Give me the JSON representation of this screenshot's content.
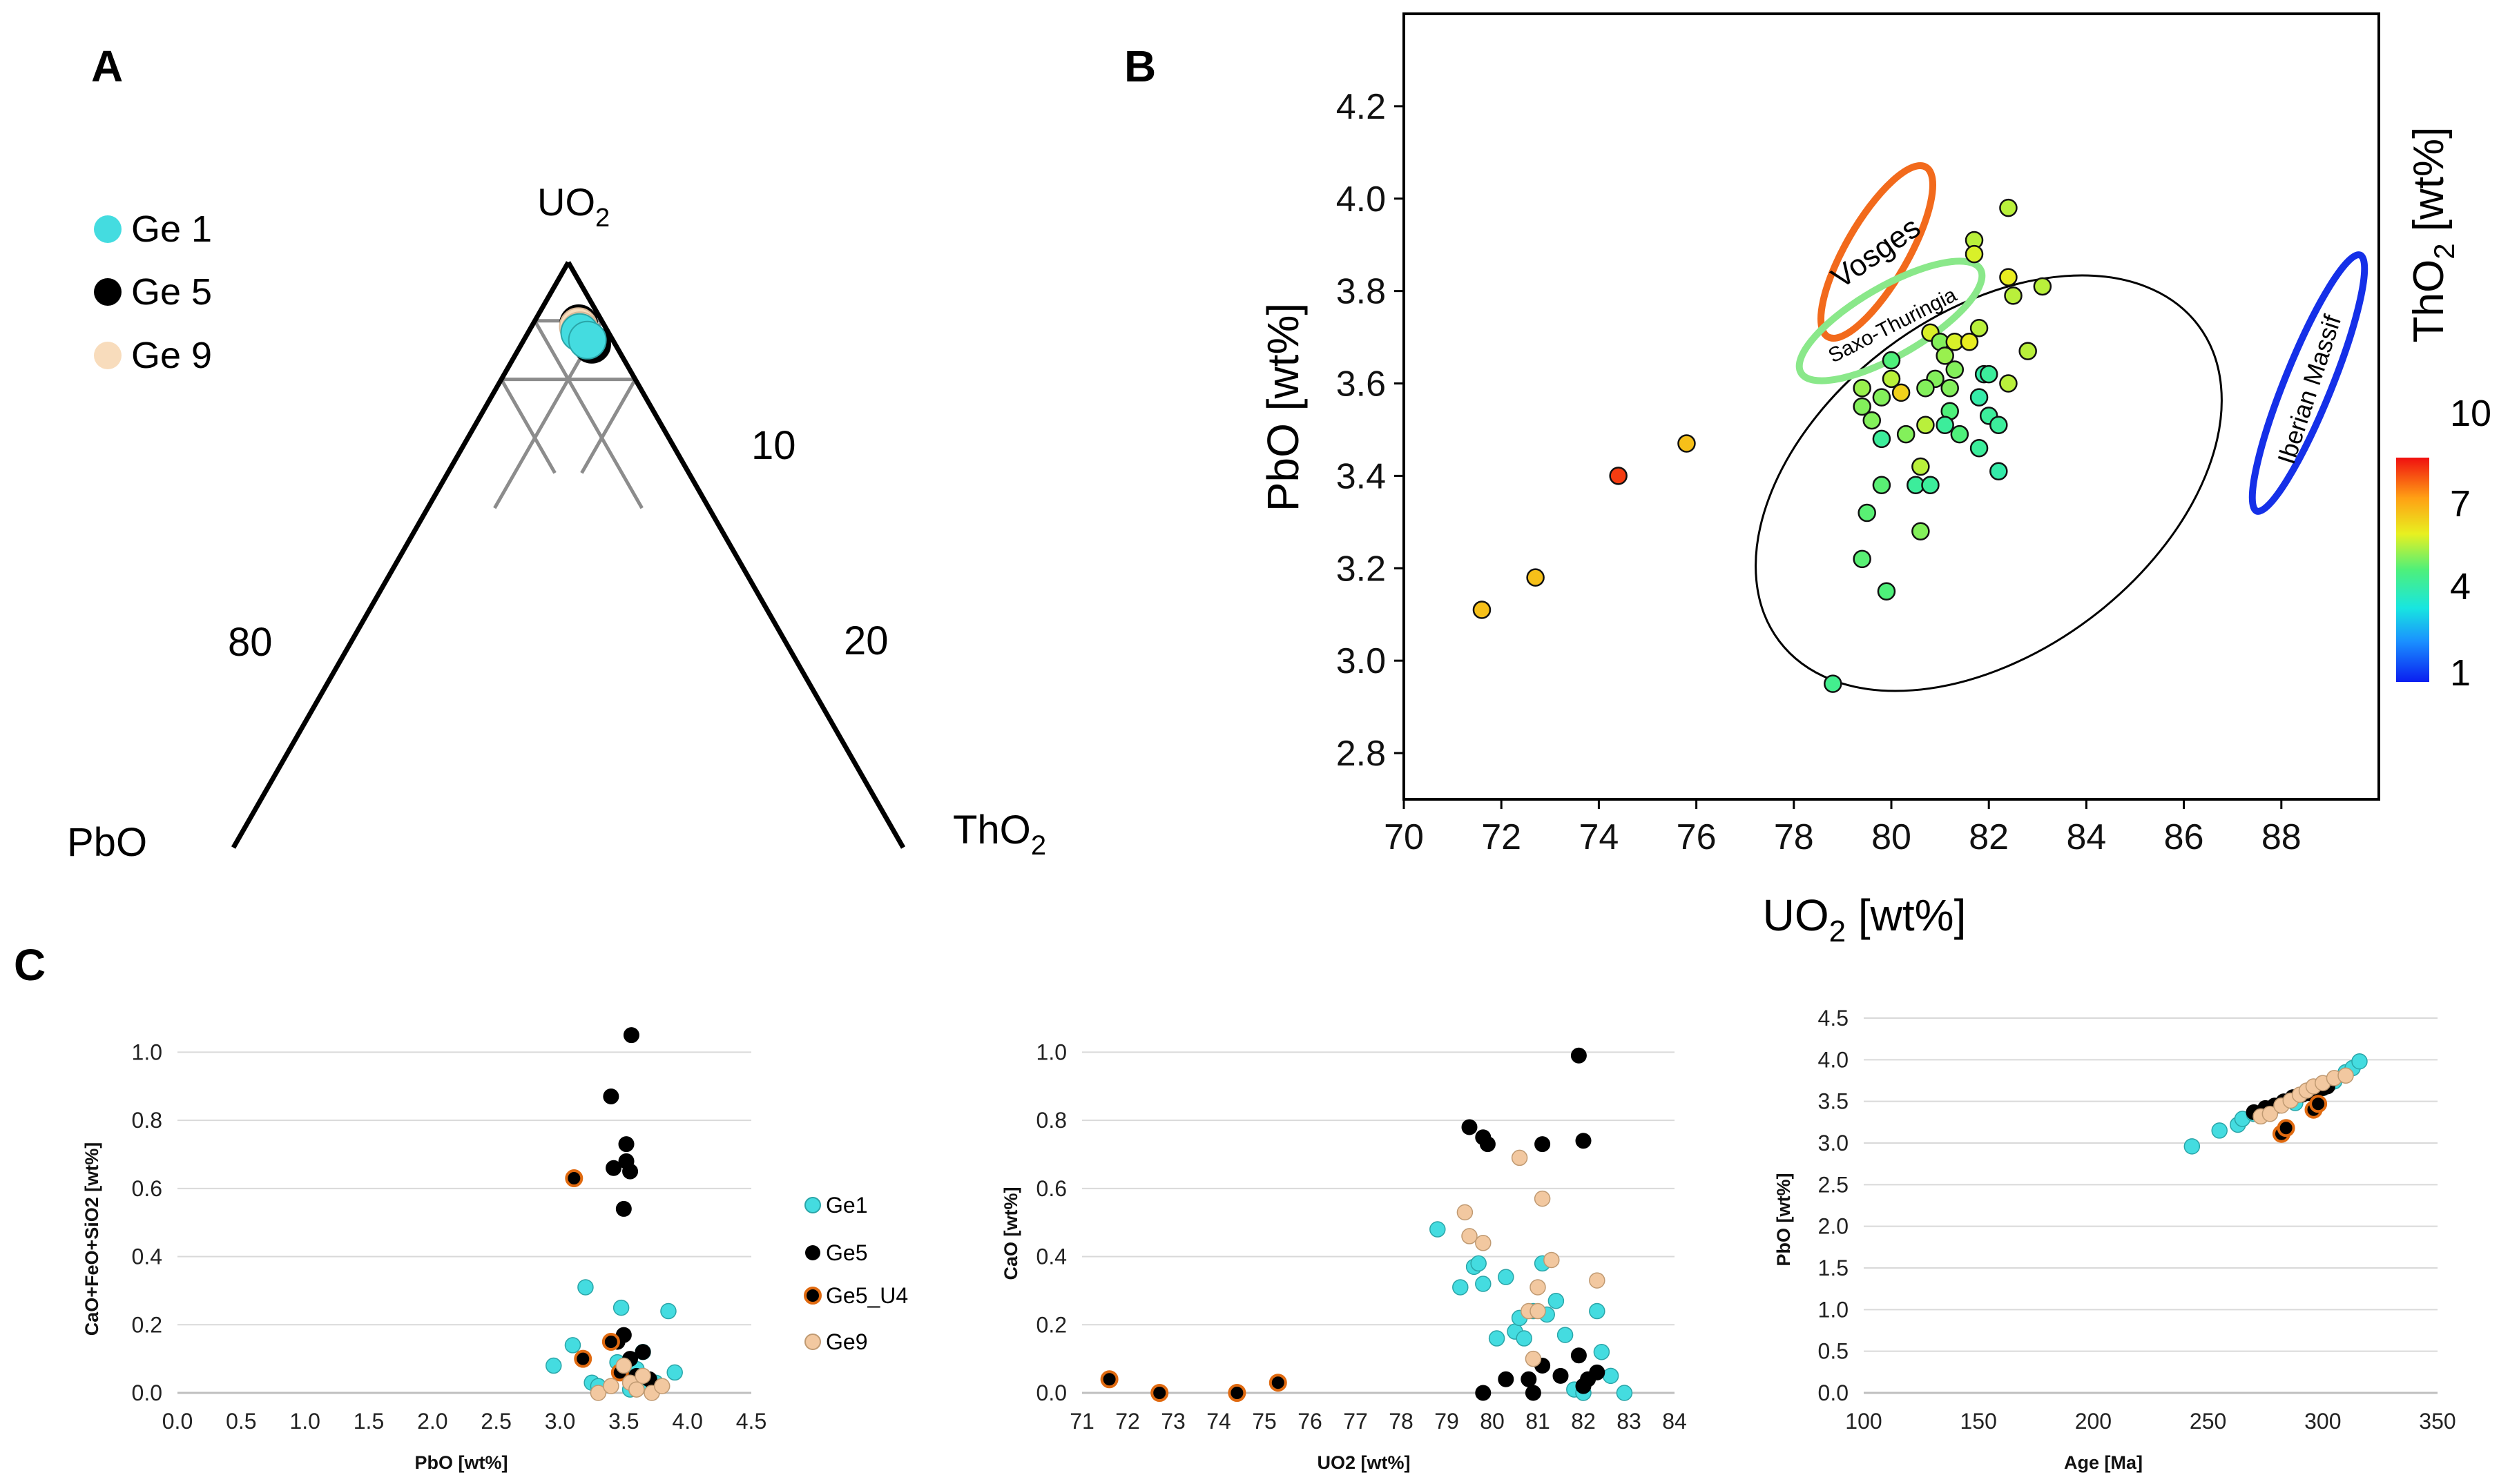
{
  "figure": {
    "panels": {
      "a": {
        "letter": "A"
      },
      "b": {
        "letter": "B"
      },
      "c": {
        "letter": "C"
      }
    },
    "ternary": {
      "apex_top": "UO",
      "apex_top_sub": "2",
      "apex_left": "PbO",
      "apex_right": "ThO",
      "apex_right_sub": "2",
      "tick_labels": [
        "10",
        "80",
        "20"
      ],
      "legend": [
        {
          "label": "Ge 1",
          "color": "#44dce0"
        },
        {
          "label": "Ge 5",
          "color": "#000000"
        },
        {
          "label": "Ge 9",
          "color": "#f8dcbc"
        }
      ]
    },
    "colorbar": {
      "title": "ThO",
      "title_sub": "2",
      "title_tail": " [wt%]",
      "ticks": [
        "10",
        "7",
        "4",
        "1"
      ]
    },
    "regions": [
      "Vosges",
      "Saxo-Thuringia",
      "Iberian Massif"
    ],
    "scatter_c_legend": [
      {
        "label": "Ge1",
        "color": "#44dce0"
      },
      {
        "label": "Ge5",
        "color": "#000000"
      },
      {
        "label": "Ge5_U4",
        "color": "#e06a10"
      },
      {
        "label": "Ge9",
        "color": "#f2c8a0"
      }
    ]
  },
  "chart_data": [
    {
      "id": "A",
      "type": "scatter",
      "subtype": "ternary",
      "title": "",
      "apexes": {
        "top": "UO2",
        "left": "PbO",
        "right": "ThO2"
      },
      "series": [
        {
          "name": "Ge 5",
          "points": [
            {
              "UO2": 89.5,
              "ThO2": 6.8,
              "PbO": 3.7
            },
            {
              "UO2": 86.0,
              "ThO2": 10.5,
              "PbO": 3.5
            }
          ]
        },
        {
          "name": "Ge 9",
          "points": [
            {
              "UO2": 89.0,
              "ThO2": 7.0,
              "PbO": 4.0
            },
            {
              "UO2": 88.3,
              "ThO2": 7.6,
              "PbO": 4.1
            }
          ]
        },
        {
          "name": "Ge 1",
          "points": [
            {
              "UO2": 88.0,
              "ThO2": 7.7,
              "PbO": 4.3
            },
            {
              "UO2": 86.7,
              "ThO2": 9.5,
              "PbO": 3.8
            }
          ]
        }
      ]
    },
    {
      "id": "B",
      "type": "scatter",
      "title": "",
      "xlabel": "UO2 [wt%]",
      "ylabel": "PbO [wt%]",
      "xlim": [
        70,
        90
      ],
      "ylim": [
        2.7,
        4.4
      ],
      "xticks": [
        70,
        72,
        74,
        76,
        78,
        80,
        82,
        84,
        86,
        88
      ],
      "yticks": [
        2.8,
        3.0,
        3.2,
        3.4,
        3.6,
        3.8,
        4.0,
        4.2
      ],
      "color_scale": {
        "name": "ThO2 [wt%]",
        "min": 1,
        "max": 10
      },
      "points": [
        {
          "x": 71.6,
          "y": 3.11,
          "c": 7.8
        },
        {
          "x": 72.7,
          "y": 3.18,
          "c": 7.8
        },
        {
          "x": 74.4,
          "y": 3.4,
          "c": 9.5
        },
        {
          "x": 75.8,
          "y": 3.47,
          "c": 7.8
        },
        {
          "x": 78.8,
          "y": 2.95,
          "c": 5.2
        },
        {
          "x": 79.4,
          "y": 3.22,
          "c": 5.6
        },
        {
          "x": 79.5,
          "y": 3.32,
          "c": 5.6
        },
        {
          "x": 79.8,
          "y": 3.38,
          "c": 5.6
        },
        {
          "x": 79.9,
          "y": 3.15,
          "c": 5.5
        },
        {
          "x": 79.4,
          "y": 3.55,
          "c": 6.0
        },
        {
          "x": 79.6,
          "y": 3.52,
          "c": 6.0
        },
        {
          "x": 79.8,
          "y": 3.48,
          "c": 5.0
        },
        {
          "x": 79.4,
          "y": 3.59,
          "c": 6.2
        },
        {
          "x": 79.8,
          "y": 3.57,
          "c": 6.0
        },
        {
          "x": 80.0,
          "y": 3.61,
          "c": 6.5
        },
        {
          "x": 80.2,
          "y": 3.58,
          "c": 7.5
        },
        {
          "x": 80.0,
          "y": 3.65,
          "c": 5.5
        },
        {
          "x": 80.3,
          "y": 3.49,
          "c": 6.0
        },
        {
          "x": 80.5,
          "y": 3.38,
          "c": 5.0
        },
        {
          "x": 80.6,
          "y": 3.42,
          "c": 6.5
        },
        {
          "x": 80.8,
          "y": 3.38,
          "c": 5.0
        },
        {
          "x": 80.6,
          "y": 3.28,
          "c": 6.0
        },
        {
          "x": 80.7,
          "y": 3.51,
          "c": 6.5
        },
        {
          "x": 80.9,
          "y": 3.61,
          "c": 6.0
        },
        {
          "x": 80.7,
          "y": 3.59,
          "c": 6.0
        },
        {
          "x": 80.8,
          "y": 3.71,
          "c": 6.8
        },
        {
          "x": 81.0,
          "y": 3.69,
          "c": 6.0
        },
        {
          "x": 81.1,
          "y": 3.66,
          "c": 6.2
        },
        {
          "x": 81.2,
          "y": 3.59,
          "c": 6.0
        },
        {
          "x": 81.3,
          "y": 3.63,
          "c": 6.0
        },
        {
          "x": 81.2,
          "y": 3.54,
          "c": 5.5
        },
        {
          "x": 81.1,
          "y": 3.51,
          "c": 5.0
        },
        {
          "x": 81.4,
          "y": 3.49,
          "c": 5.5
        },
        {
          "x": 81.3,
          "y": 3.69,
          "c": 6.8
        },
        {
          "x": 81.6,
          "y": 3.69,
          "c": 7.0
        },
        {
          "x": 81.7,
          "y": 3.91,
          "c": 6.5
        },
        {
          "x": 81.7,
          "y": 3.88,
          "c": 6.8
        },
        {
          "x": 81.8,
          "y": 3.72,
          "c": 6.5
        },
        {
          "x": 81.8,
          "y": 3.57,
          "c": 4.8
        },
        {
          "x": 81.9,
          "y": 3.62,
          "c": 4.8
        },
        {
          "x": 82.0,
          "y": 3.62,
          "c": 5.0
        },
        {
          "x": 81.8,
          "y": 3.46,
          "c": 5.0
        },
        {
          "x": 82.0,
          "y": 3.53,
          "c": 5.0
        },
        {
          "x": 82.2,
          "y": 3.51,
          "c": 5.0
        },
        {
          "x": 82.2,
          "y": 3.41,
          "c": 4.8
        },
        {
          "x": 82.4,
          "y": 3.6,
          "c": 6.5
        },
        {
          "x": 82.4,
          "y": 3.83,
          "c": 7.0
        },
        {
          "x": 82.5,
          "y": 3.79,
          "c": 6.5
        },
        {
          "x": 82.4,
          "y": 3.98,
          "c": 6.5
        },
        {
          "x": 82.8,
          "y": 3.67,
          "c": 6.5
        },
        {
          "x": 83.1,
          "y": 3.81,
          "c": 6.5
        }
      ],
      "regions": [
        {
          "label": "Vosges",
          "color": "#f26a1c"
        },
        {
          "label": "Saxo-Thuringia",
          "color": "#8ae88a"
        },
        {
          "label": "Iberian Massif",
          "color": "#1530e8"
        }
      ]
    },
    {
      "id": "C1",
      "type": "scatter",
      "title": "",
      "xlabel": "PbO [wt%]",
      "ylabel": "CaO+FeO+SiO2 [wt%]",
      "xlim": [
        0,
        4.5
      ],
      "ylim": [
        0,
        1.1
      ],
      "xticks": [
        0.0,
        0.5,
        1.0,
        1.5,
        2.0,
        2.5,
        3.0,
        3.5,
        4.0,
        4.5
      ],
      "yticks": [
        0.0,
        0.2,
        0.4,
        0.6,
        0.8,
        1.0
      ],
      "series": [
        {
          "name": "Ge1",
          "points": [
            [
              2.95,
              0.08
            ],
            [
              3.1,
              0.14
            ],
            [
              3.2,
              0.31
            ],
            [
              3.25,
              0.03
            ],
            [
              3.3,
              0.02
            ],
            [
              3.4,
              0.15
            ],
            [
              3.48,
              0.25
            ],
            [
              3.55,
              0.01
            ],
            [
              3.6,
              0.07
            ],
            [
              3.65,
              0.12
            ],
            [
              3.7,
              0.02
            ],
            [
              3.75,
              0.03
            ],
            [
              3.85,
              0.24
            ],
            [
              3.9,
              0.06
            ],
            [
              3.45,
              0.09
            ]
          ]
        },
        {
          "name": "Ge5",
          "points": [
            [
              3.4,
              0.87
            ],
            [
              3.42,
              0.66
            ],
            [
              3.5,
              0.54
            ],
            [
              3.52,
              0.73
            ],
            [
              3.52,
              0.68
            ],
            [
              3.55,
              0.65
            ],
            [
              3.56,
              1.05
            ],
            [
              3.45,
              0.15
            ],
            [
              3.5,
              0.17
            ],
            [
              3.55,
              0.1
            ],
            [
              3.6,
              0.05
            ],
            [
              3.65,
              0.12
            ],
            [
              3.7,
              0.04
            ],
            [
              3.48,
              0.06
            ]
          ]
        },
        {
          "name": "Ge5_U4",
          "points": [
            [
              3.11,
              0.63
            ],
            [
              3.18,
              0.1
            ],
            [
              3.4,
              0.15
            ],
            [
              3.47,
              0.06
            ]
          ]
        },
        {
          "name": "Ge9",
          "points": [
            [
              3.3,
              0.0
            ],
            [
              3.4,
              0.02
            ],
            [
              3.5,
              0.08
            ],
            [
              3.55,
              0.03
            ],
            [
              3.6,
              0.01
            ],
            [
              3.65,
              0.05
            ],
            [
              3.72,
              0.0
            ],
            [
              3.8,
              0.02
            ]
          ]
        }
      ]
    },
    {
      "id": "C2",
      "type": "scatter",
      "title": "",
      "xlabel": "UO2 [wt%]",
      "ylabel": "CaO [wt%]",
      "xlim": [
        71,
        84
      ],
      "ylim": [
        0,
        1.1
      ],
      "xticks": [
        71,
        72,
        73,
        74,
        75,
        76,
        77,
        78,
        79,
        80,
        81,
        82,
        83,
        84
      ],
      "yticks": [
        0.0,
        0.2,
        0.4,
        0.6,
        0.8,
        1.0
      ],
      "series": [
        {
          "name": "Ge1",
          "points": [
            [
              78.8,
              0.48
            ],
            [
              79.3,
              0.31
            ],
            [
              79.6,
              0.37
            ],
            [
              79.7,
              0.38
            ],
            [
              79.8,
              0.32
            ],
            [
              80.1,
              0.16
            ],
            [
              80.3,
              0.34
            ],
            [
              80.5,
              0.18
            ],
            [
              80.6,
              0.22
            ],
            [
              80.7,
              0.16
            ],
            [
              80.9,
              0.24
            ],
            [
              81.1,
              0.38
            ],
            [
              81.2,
              0.23
            ],
            [
              81.4,
              0.27
            ],
            [
              81.6,
              0.17
            ],
            [
              81.8,
              0.01
            ],
            [
              82.0,
              0.0
            ],
            [
              82.3,
              0.24
            ],
            [
              82.4,
              0.12
            ],
            [
              82.6,
              0.05
            ],
            [
              82.9,
              0.0
            ]
          ]
        },
        {
          "name": "Ge5",
          "points": [
            [
              79.5,
              0.78
            ],
            [
              79.8,
              0.75
            ],
            [
              79.9,
              0.73
            ],
            [
              81.1,
              0.73
            ],
            [
              81.9,
              0.99
            ],
            [
              82.0,
              0.74
            ],
            [
              79.8,
              0.0
            ],
            [
              80.3,
              0.04
            ],
            [
              80.8,
              0.04
            ],
            [
              80.9,
              0.0
            ],
            [
              81.1,
              0.08
            ],
            [
              81.5,
              0.05
            ],
            [
              81.9,
              0.11
            ],
            [
              82.0,
              0.02
            ],
            [
              82.1,
              0.04
            ],
            [
              82.3,
              0.06
            ]
          ]
        },
        {
          "name": "Ge5_U4",
          "points": [
            [
              71.6,
              0.04
            ],
            [
              72.7,
              0.0
            ],
            [
              74.4,
              0.0
            ],
            [
              75.3,
              0.03
            ]
          ]
        },
        {
          "name": "Ge9",
          "points": [
            [
              79.4,
              0.53
            ],
            [
              79.5,
              0.46
            ],
            [
              79.8,
              0.44
            ],
            [
              80.6,
              0.69
            ],
            [
              80.8,
              0.24
            ],
            [
              81.0,
              0.31
            ],
            [
              81.1,
              0.57
            ],
            [
              81.3,
              0.39
            ],
            [
              80.9,
              0.1
            ],
            [
              81.0,
              0.24
            ],
            [
              82.3,
              0.33
            ]
          ]
        }
      ]
    },
    {
      "id": "C3",
      "type": "scatter",
      "title": "",
      "xlabel": "Age [Ma]",
      "ylabel": "PbO [wt%]",
      "xlim": [
        100,
        350
      ],
      "ylim": [
        0,
        4.5
      ],
      "xticks": [
        100,
        150,
        200,
        250,
        300,
        350
      ],
      "yticks": [
        0.0,
        0.5,
        1.0,
        1.5,
        2.0,
        2.5,
        3.0,
        3.5,
        4.0,
        4.5
      ],
      "series": [
        {
          "name": "Ge1",
          "points": [
            [
              243,
              2.96
            ],
            [
              255,
              3.15
            ],
            [
              263,
              3.22
            ],
            [
              265,
              3.29
            ],
            [
              270,
              3.35
            ],
            [
              288,
              3.48
            ],
            [
              293,
              3.6
            ],
            [
              300,
              3.66
            ],
            [
              305,
              3.74
            ],
            [
              310,
              3.85
            ],
            [
              313,
              3.9
            ],
            [
              316,
              3.98
            ]
          ]
        },
        {
          "name": "Ge5",
          "points": [
            [
              270,
              3.37
            ],
            [
              275,
              3.42
            ],
            [
              279,
              3.45
            ],
            [
              283,
              3.5
            ],
            [
              287,
              3.55
            ],
            [
              291,
              3.58
            ],
            [
              294,
              3.6
            ],
            [
              297,
              3.63
            ],
            [
              300,
              3.66
            ],
            [
              302,
              3.68
            ],
            [
              281,
              3.45
            ]
          ]
        },
        {
          "name": "Ge5_U4",
          "points": [
            [
              282,
              3.11
            ],
            [
              284,
              3.18
            ],
            [
              296,
              3.4
            ],
            [
              298,
              3.47
            ]
          ]
        },
        {
          "name": "Ge9",
          "points": [
            [
              273,
              3.32
            ],
            [
              277,
              3.35
            ],
            [
              282,
              3.45
            ],
            [
              286,
              3.51
            ],
            [
              290,
              3.58
            ],
            [
              293,
              3.63
            ],
            [
              296,
              3.68
            ],
            [
              300,
              3.72
            ],
            [
              305,
              3.78
            ],
            [
              310,
              3.81
            ]
          ]
        }
      ]
    }
  ]
}
